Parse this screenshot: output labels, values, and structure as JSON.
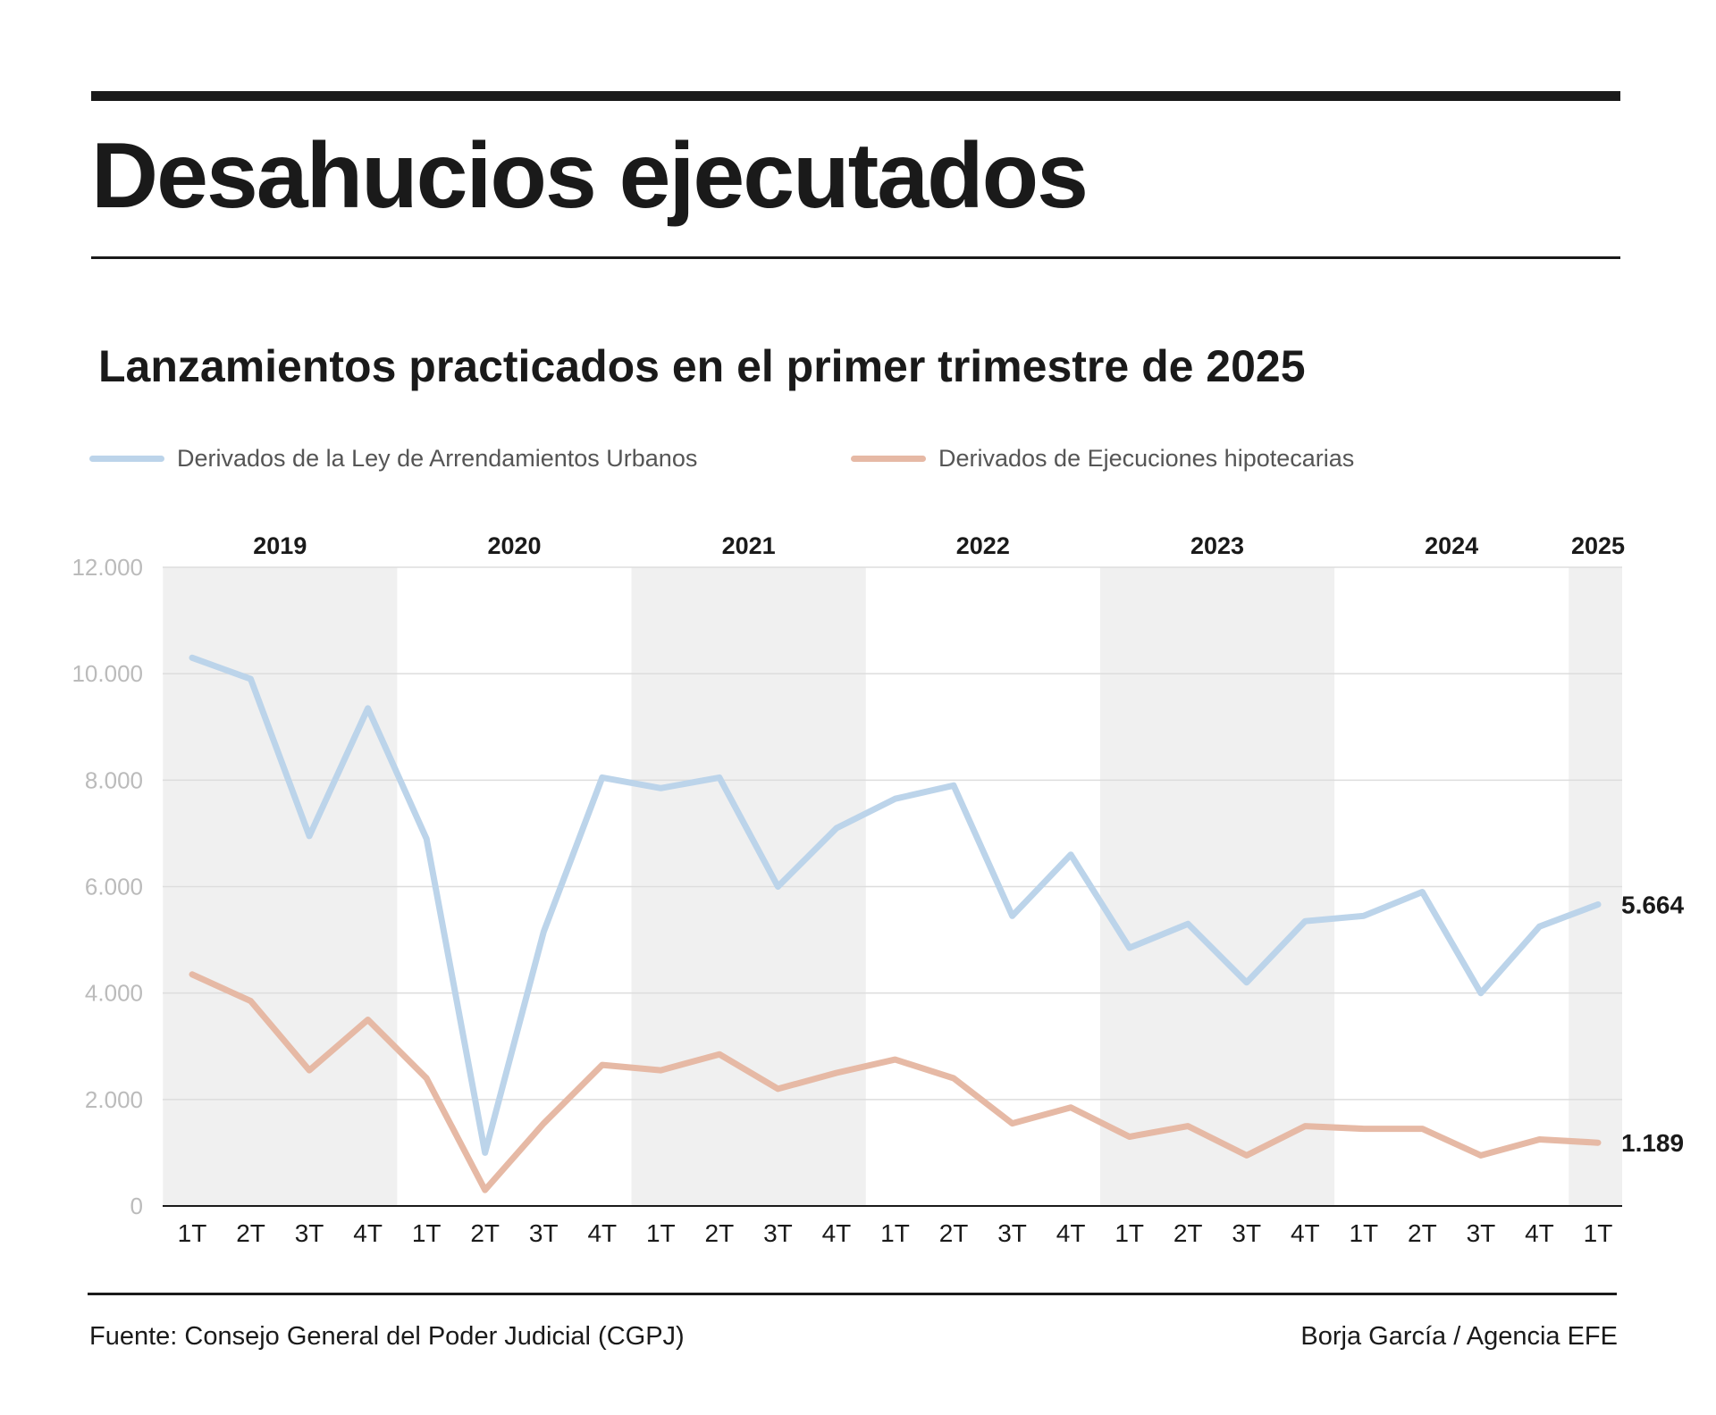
{
  "header": {
    "title": "Desahucios ejecutados"
  },
  "colors": {
    "lau": "#bcd4ea",
    "hipotecarias": "#e6b9a5",
    "band": "#f0f0f0",
    "grid": "#dddddd",
    "axis_label": "#bbbbbb"
  },
  "chart_data": {
    "type": "line",
    "title": "Lanzamientos practicados en el primer trimestre de 2025",
    "xlabel": "",
    "ylabel": "",
    "ylim": [
      0,
      12000
    ],
    "yticks": [
      0,
      2000,
      4000,
      6000,
      8000,
      10000,
      12000
    ],
    "ytick_labels": [
      "0",
      "2.000",
      "4.000",
      "6.000",
      "8.000",
      "10.000",
      "12.000"
    ],
    "grid": true,
    "legend_placement": "top",
    "years": [
      "2019",
      "2020",
      "2021",
      "2022",
      "2023",
      "2024",
      "2025"
    ],
    "categories": [
      "1T",
      "2T",
      "3T",
      "4T",
      "1T",
      "2T",
      "3T",
      "4T",
      "1T",
      "2T",
      "3T",
      "4T",
      "1T",
      "2T",
      "3T",
      "4T",
      "1T",
      "2T",
      "3T",
      "4T",
      "1T",
      "2T",
      "3T",
      "4T",
      "1T"
    ],
    "series": [
      {
        "name": "Derivados de la Ley de Arrendamientos Urbanos",
        "color": "#bcd4ea",
        "values": [
          10300,
          9900,
          6950,
          9350,
          6900,
          1000,
          5150,
          8050,
          7850,
          8050,
          6000,
          7100,
          7650,
          7900,
          5450,
          6600,
          4850,
          5300,
          4200,
          5350,
          5450,
          5900,
          4000,
          5250,
          5664
        ],
        "end_label": "5.664"
      },
      {
        "name": "Derivados de Ejecuciones hipotecarias",
        "color": "#e6b9a5",
        "values": [
          4350,
          3850,
          2550,
          3500,
          2400,
          300,
          1550,
          2650,
          2550,
          2850,
          2200,
          2500,
          2750,
          2400,
          1550,
          1850,
          1300,
          1500,
          950,
          1500,
          1450,
          1450,
          950,
          1250,
          1189
        ],
        "end_label": "1.189"
      }
    ]
  },
  "footer": {
    "source": "Fuente: Consejo General del Poder Judicial (CGPJ)",
    "credit": "Borja García / Agencia EFE"
  }
}
